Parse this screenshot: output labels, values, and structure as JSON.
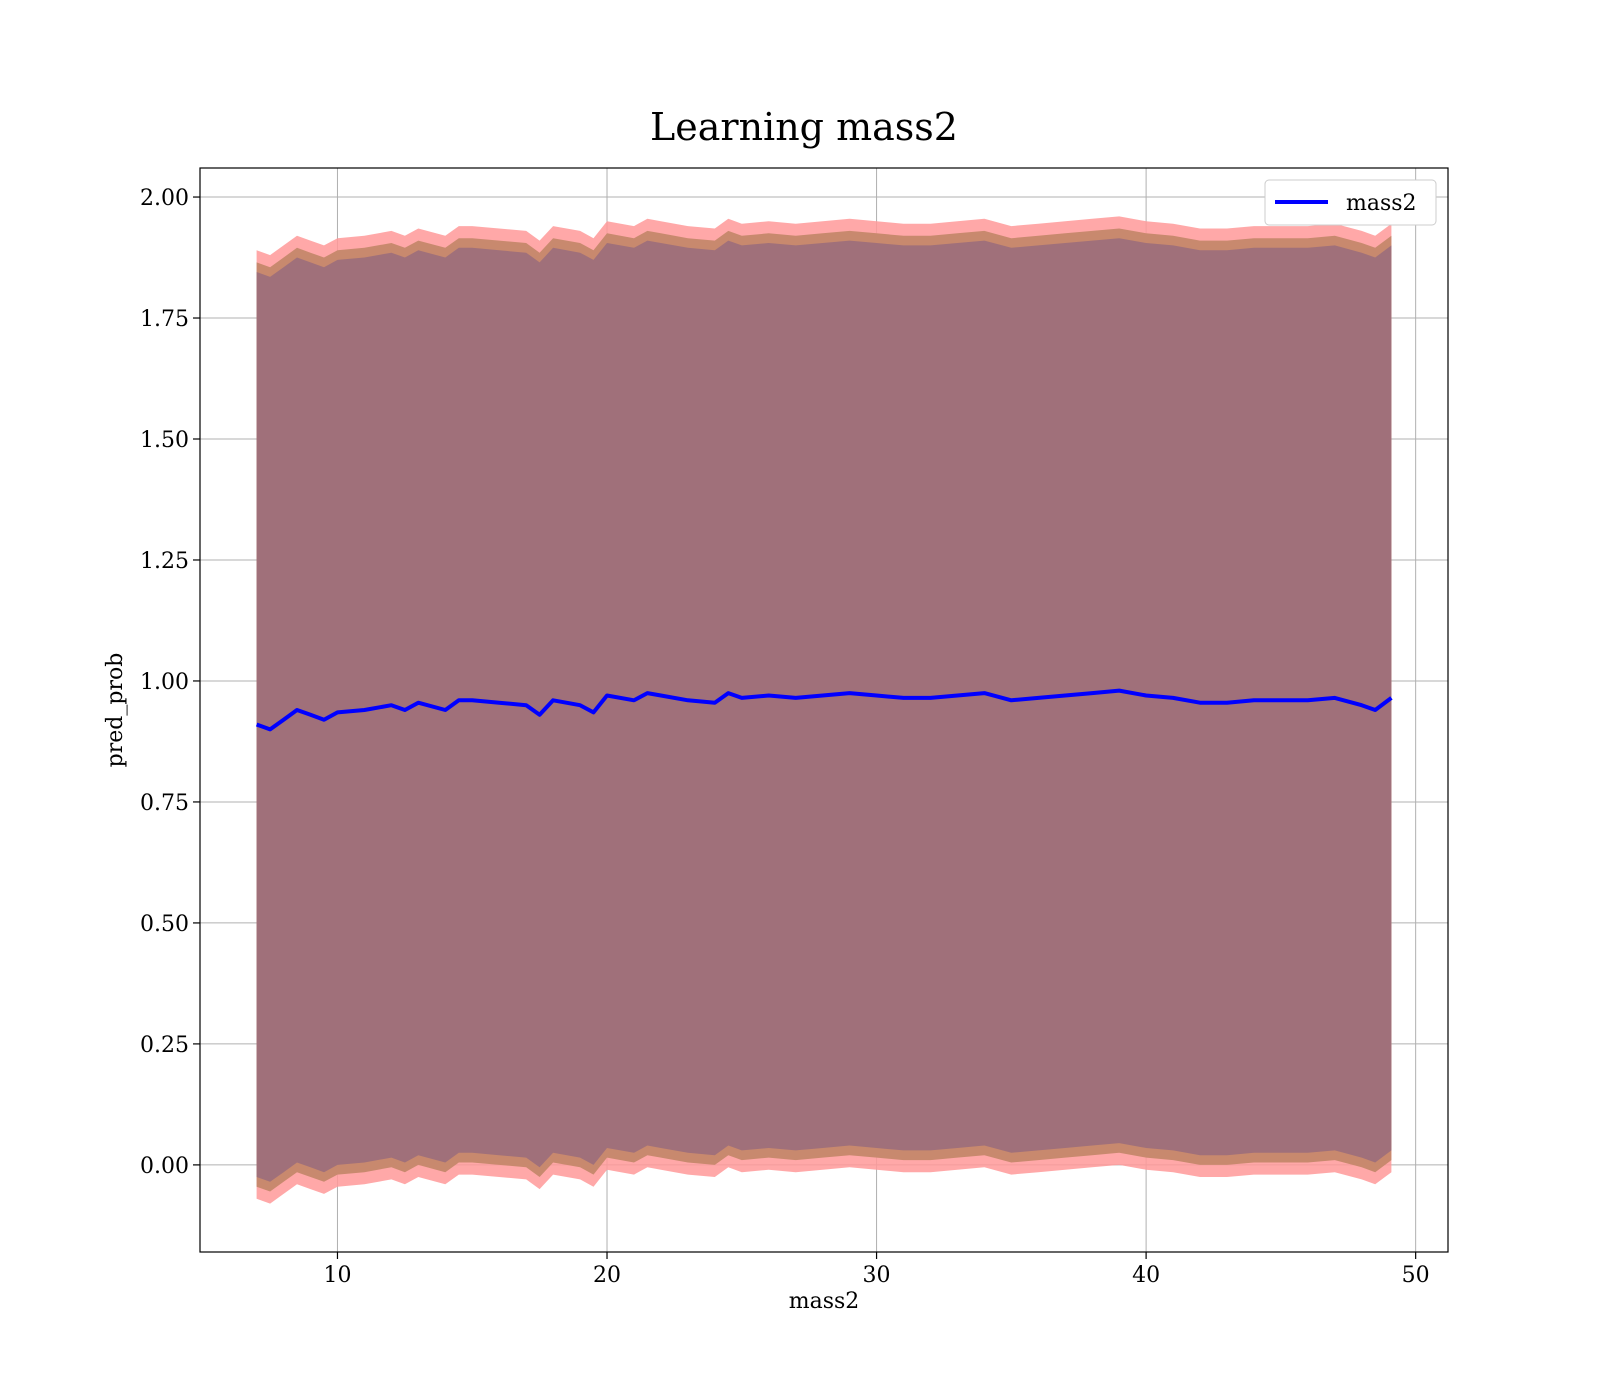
{
  "chart_data": {
    "type": "area",
    "title": "Learning mass2",
    "xlabel": "mass2",
    "ylabel": "pred_prob",
    "xlim": [
      4.9,
      51.2
    ],
    "ylim": [
      -0.18,
      2.06
    ],
    "xticks": [
      10,
      20,
      30,
      40,
      50
    ],
    "yticks": [
      0.0,
      0.25,
      0.5,
      0.75,
      1.0,
      1.25,
      1.5,
      1.75,
      2.0
    ],
    "ytick_labels": [
      "0.00",
      "0.25",
      "0.50",
      "0.75",
      "1.00",
      "1.25",
      "1.50",
      "1.75",
      "2.00"
    ],
    "grid": true,
    "legend": {
      "placement": "top-right",
      "entries": [
        "mass2"
      ]
    },
    "colors": {
      "line": "#0000ff",
      "outer_band": "#ff9999",
      "mid_band": "#c8896e",
      "inner_band": "#a0707a"
    },
    "x": [
      7.0,
      7.5,
      8.0,
      8.5,
      9.0,
      9.5,
      10.0,
      11.0,
      12.0,
      12.5,
      13.0,
      14.0,
      14.5,
      15.0,
      16.0,
      17.0,
      17.5,
      18.0,
      19.0,
      19.5,
      20.0,
      21.0,
      21.5,
      22.0,
      23.0,
      24.0,
      24.5,
      25.0,
      26.0,
      27.0,
      28.0,
      29.0,
      30.0,
      31.0,
      32.0,
      33.0,
      34.0,
      35.0,
      36.0,
      37.0,
      38.0,
      39.0,
      40.0,
      41.0,
      42.0,
      43.0,
      44.0,
      45.0,
      46.0,
      47.0,
      48.0,
      48.5,
      49.1
    ],
    "series": [
      {
        "name": "mass2",
        "values": [
          0.91,
          0.9,
          0.92,
          0.94,
          0.93,
          0.92,
          0.935,
          0.94,
          0.95,
          0.94,
          0.955,
          0.94,
          0.96,
          0.96,
          0.955,
          0.95,
          0.93,
          0.96,
          0.95,
          0.935,
          0.97,
          0.96,
          0.975,
          0.97,
          0.96,
          0.955,
          0.975,
          0.965,
          0.97,
          0.965,
          0.97,
          0.975,
          0.97,
          0.965,
          0.965,
          0.97,
          0.975,
          0.96,
          0.965,
          0.97,
          0.975,
          0.98,
          0.97,
          0.965,
          0.955,
          0.955,
          0.96,
          0.96,
          0.96,
          0.965,
          0.95,
          0.94,
          0.965
        ]
      }
    ],
    "bands": [
      {
        "name": "outer",
        "half_width": 0.98
      },
      {
        "name": "mid",
        "half_width": 0.955
      },
      {
        "name": "inner",
        "half_width": 0.935
      }
    ]
  }
}
